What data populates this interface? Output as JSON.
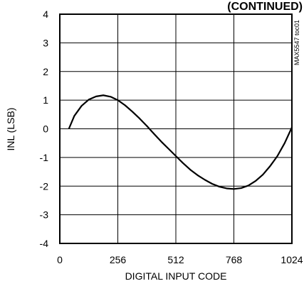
{
  "chart_data": {
    "type": "line",
    "title": "(CONTINUED)",
    "xlabel": "DIGITAL INPUT CODE",
    "ylabel": "INL (LSB)",
    "xlim": [
      0,
      1024
    ],
    "ylim": [
      -4,
      4
    ],
    "xticks": [
      0,
      256,
      512,
      768,
      1024
    ],
    "yticks": [
      4,
      3,
      2,
      1,
      0,
      -1,
      -2,
      -3,
      -4
    ],
    "grid": true,
    "legend": "none",
    "watermark": "MAX5547 toc01",
    "series": [
      {
        "color": "#000000",
        "x": [
          40,
          64,
          96,
          128,
          160,
          192,
          224,
          256,
          288,
          320,
          352,
          384,
          416,
          448,
          480,
          512,
          544,
          576,
          608,
          640,
          672,
          704,
          736,
          768,
          800,
          832,
          864,
          896,
          928,
          960,
          992,
          1024
        ],
        "y": [
          0.0,
          0.45,
          0.8,
          1.02,
          1.13,
          1.17,
          1.12,
          1.0,
          0.82,
          0.6,
          0.36,
          0.1,
          -0.18,
          -0.45,
          -0.7,
          -0.95,
          -1.2,
          -1.43,
          -1.62,
          -1.78,
          -1.92,
          -2.02,
          -2.08,
          -2.1,
          -2.07,
          -1.98,
          -1.82,
          -1.6,
          -1.3,
          -0.95,
          -0.5,
          0.05
        ]
      }
    ]
  }
}
